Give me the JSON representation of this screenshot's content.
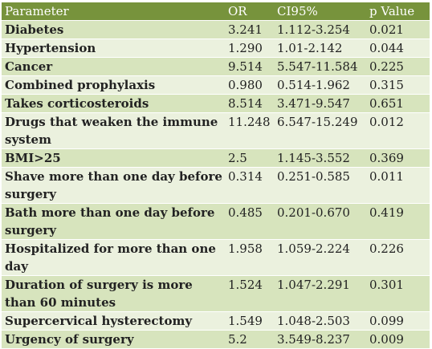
{
  "headers": [
    "Parameter",
    "OR",
    "CI95%",
    "p Value"
  ],
  "rows": [
    {
      "parameter": "Diabetes",
      "or": "3.241",
      "ci": "1.112-3.254",
      "p": "0.021"
    },
    {
      "parameter": "Hypertension",
      "or": "1.290",
      "ci": "1.01-2.142",
      "p": "0.044"
    },
    {
      "parameter": "Cancer",
      "or": "9.514",
      "ci": "5.547-11.584",
      "p": "0.225"
    },
    {
      "parameter": "Combined prophylaxis",
      "or": "0.980",
      "ci": "0.514-1.962",
      "p": "0.315"
    },
    {
      "parameter": "Takes corticosteroids",
      "or": "8.514",
      "ci": "3.471-9.547",
      "p": "0.651"
    },
    {
      "parameter": "Drugs that weaken the immune system",
      "or": "11.248",
      "ci": "6.547-15.249",
      "p": "0.012"
    },
    {
      "parameter": "BMI>25",
      "or": "2.5",
      "ci": "1.145-3.552",
      "p": "0.369"
    },
    {
      "parameter": "Shave more than one day before surgery",
      "or": "0.314",
      "ci": "0.251-0.585",
      "p": "0.011"
    },
    {
      "parameter": "Bath more than one day before surgery",
      "or": "0.485",
      "ci": "0.201-0.670",
      "p": "0.419"
    },
    {
      "parameter": "Hospitalized for more than one day",
      "or": "1.958",
      "ci": "1.059-2.224",
      "p": "0.226"
    },
    {
      "parameter": "Duration of surgery is more than 60 minutes",
      "or": "1.524",
      "ci": "1.047-2.291",
      "p": "0.301"
    },
    {
      "parameter": "Supercervical hysterectomy",
      "or": "1.549",
      "ci": "1.048-2.503",
      "p": "0.099"
    },
    {
      "parameter": "Urgency of surgery",
      "or": "5.2",
      "ci": "3.549-8.237",
      "p": "0.009"
    }
  ],
  "colors": {
    "header_bg": "#77933c",
    "row_light": "#ebf1de",
    "row_dark": "#d7e4bd"
  }
}
